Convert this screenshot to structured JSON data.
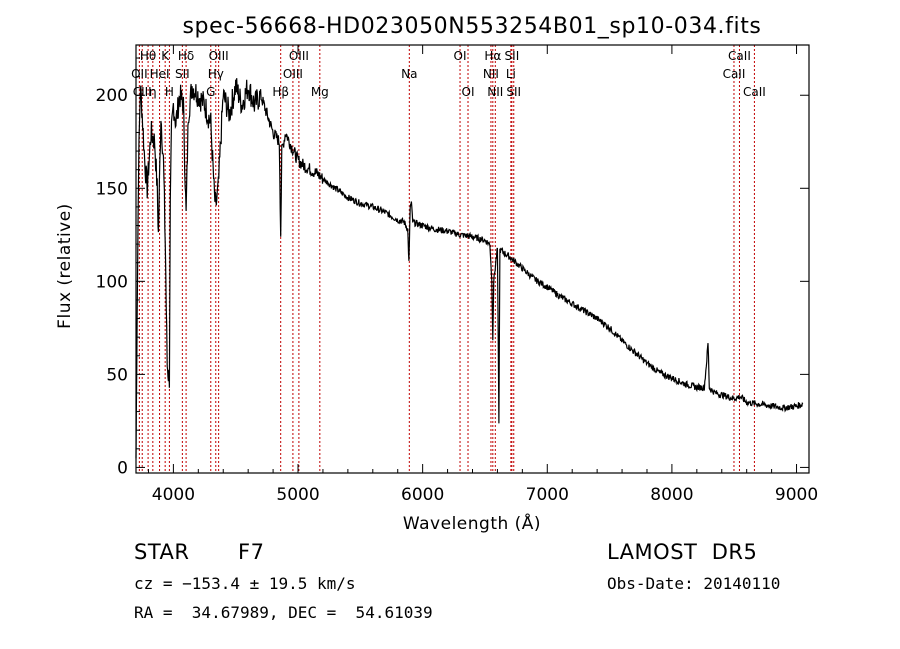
{
  "chart_data": {
    "type": "line",
    "title": "spec-56668-HD023050N553254B01_sp10-034.fits",
    "xlabel": "Wavelength (Å)",
    "ylabel": "Flux (relative)",
    "xlim": [
      3700,
      9100
    ],
    "ylim": [
      -3,
      227
    ],
    "x_ticks": [
      4000,
      5000,
      6000,
      7000,
      8000,
      9000
    ],
    "y_ticks": [
      0,
      50,
      100,
      150,
      200
    ],
    "grid": false,
    "legend": "none",
    "line_color": "#000000",
    "marker_color": "#c00000",
    "series": [
      {
        "x": [
          3700,
          3710,
          3720,
          3735,
          3750,
          3770,
          3790,
          3820,
          3850,
          3870,
          3880,
          3900,
          3920,
          3935,
          3950,
          3960,
          3968,
          3975,
          3985,
          4000,
          4020,
          4050,
          4080,
          4102,
          4120,
          4150,
          4200,
          4250,
          4300,
          4330,
          4340,
          4360,
          4400,
          4450,
          4500,
          4550,
          4600,
          4650,
          4700,
          4750,
          4800,
          4850,
          4861,
          4870,
          4900,
          4950,
          5000,
          5050,
          5100,
          5150,
          5200,
          5300,
          5400,
          5500,
          5600,
          5700,
          5800,
          5850,
          5880,
          5890,
          5900,
          5910,
          5920,
          5950,
          6000,
          6100,
          6200,
          6300,
          6400,
          6500,
          6540,
          6555,
          6563,
          6570,
          6600,
          6612,
          6620,
          6640,
          6700,
          6800,
          6900,
          7000,
          7100,
          7200,
          7300,
          7400,
          7500,
          7600,
          7700,
          7800,
          7900,
          8000,
          8100,
          8200,
          8260,
          8280,
          8290,
          8300,
          8310,
          8350,
          8400,
          8450,
          8500,
          8550,
          8600,
          8700,
          8800,
          8900,
          9000,
          9050
        ],
        "y": [
          5,
          88,
          160,
          205,
          190,
          165,
          150,
          180,
          175,
          150,
          125,
          190,
          165,
          120,
          55,
          50,
          48,
          140,
          180,
          195,
          185,
          200,
          195,
          135,
          190,
          205,
          200,
          195,
          185,
          145,
          140,
          150,
          200,
          190,
          205,
          195,
          205,
          195,
          200,
          190,
          180,
          175,
          125,
          170,
          180,
          172,
          165,
          162,
          160,
          158,
          155,
          150,
          145,
          142,
          140,
          137,
          133,
          132,
          128,
          110,
          140,
          142,
          132,
          131,
          130,
          128,
          127,
          125,
          124,
          122,
          120,
          100,
          70,
          100,
          118,
          25,
          117,
          116,
          113,
          107,
          101,
          97,
          92,
          88,
          84,
          80,
          75,
          68,
          62,
          56,
          51,
          48,
          45,
          43,
          43,
          58,
          67,
          43,
          42,
          40,
          39,
          38,
          37,
          38,
          35,
          34,
          33,
          32,
          33,
          34
        ]
      }
    ],
    "spectral_lines": [
      {
        "name": "Hθ",
        "wl": 3797,
        "row": 0
      },
      {
        "name": "K",
        "wl": 3934,
        "row": 0
      },
      {
        "name": "Hδ",
        "wl": 4102,
        "row": 0
      },
      {
        "name": "OIII",
        "wl": 4363,
        "row": 0
      },
      {
        "name": "OIII",
        "wl": 5007,
        "row": 0
      },
      {
        "name": "OI",
        "wl": 6300,
        "row": 0
      },
      {
        "name": "Hα",
        "wl": 6563,
        "row": 0
      },
      {
        "name": "SII",
        "wl": 6716,
        "row": 0
      },
      {
        "name": "CaII",
        "wl": 8542,
        "row": 0
      },
      {
        "name": "OII",
        "wl": 3727,
        "row": 1
      },
      {
        "name": "HeI",
        "wl": 3889,
        "row": 1
      },
      {
        "name": "SII",
        "wl": 4072,
        "row": 1
      },
      {
        "name": "Hγ",
        "wl": 4340,
        "row": 1
      },
      {
        "name": "OIII",
        "wl": 4959,
        "row": 1
      },
      {
        "name": "Na",
        "wl": 5893,
        "row": 1
      },
      {
        "name": "NII",
        "wl": 6548,
        "row": 1
      },
      {
        "name": "Li",
        "wl": 6708,
        "row": 1
      },
      {
        "name": "CaII",
        "wl": 8498,
        "row": 1
      },
      {
        "name": "CIII",
        "wl": 3750,
        "row": 2
      },
      {
        "name": "η",
        "wl": 3835,
        "row": 2
      },
      {
        "name": "H",
        "wl": 3968,
        "row": 2
      },
      {
        "name": "G",
        "wl": 4300,
        "row": 2
      },
      {
        "name": "Hβ",
        "wl": 4861,
        "row": 2
      },
      {
        "name": "Mg",
        "wl": 5175,
        "row": 2
      },
      {
        "name": "OI",
        "wl": 6364,
        "row": 2
      },
      {
        "name": "NII",
        "wl": 6583,
        "row": 2
      },
      {
        "name": "SII",
        "wl": 6731,
        "row": 2
      },
      {
        "name": "CaII",
        "wl": 8662,
        "row": 2
      }
    ]
  },
  "info": {
    "object_class": "STAR",
    "subclass": "F7",
    "survey": "LAMOST  DR5",
    "redshift": "cz = −153.4 ± 19.5 km/s",
    "obs_date": "Obs-Date: 20140110",
    "coords": "RA =  34.67989, DEC =  54.61039"
  }
}
